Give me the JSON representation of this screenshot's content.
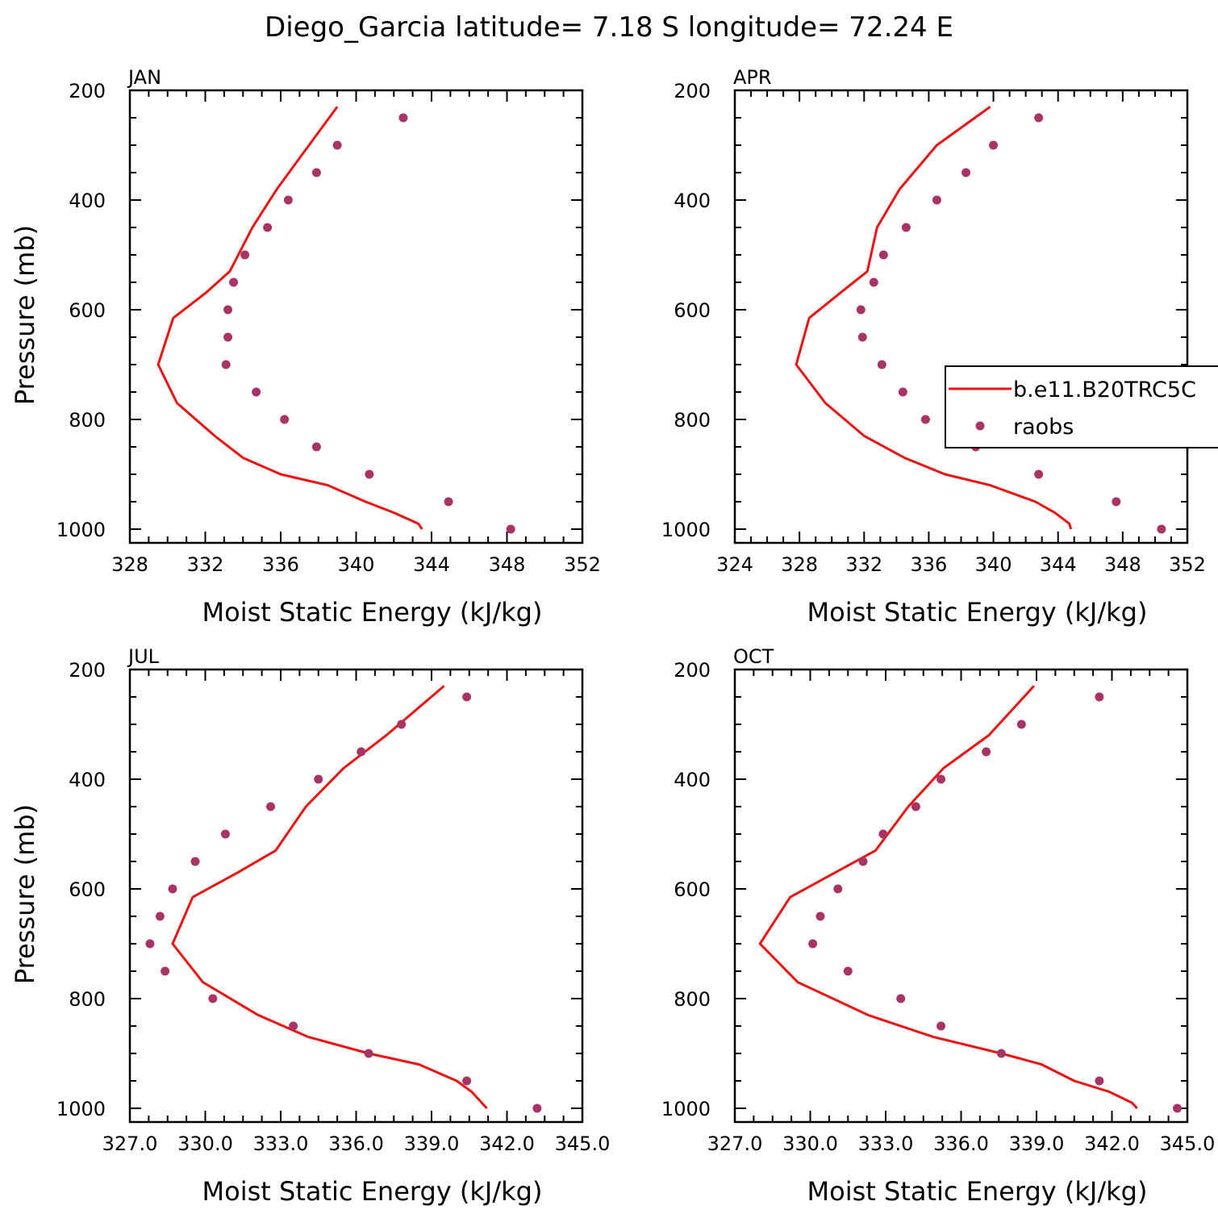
{
  "title": "Diego_Garcia  latitude= 7.18 S longitude= 72.24 E",
  "colors": {
    "model_line": "#ee1111",
    "obs_marker": "#aa3366",
    "axis": "#000000"
  },
  "legend": {
    "entries": [
      {
        "label": "b.e11.B20TRC5C",
        "style": "line"
      },
      {
        "label": "raobs",
        "style": "marker"
      }
    ],
    "panel": 1
  },
  "chart_data": [
    {
      "type": "line",
      "panel_label": "JAN",
      "xlabel": "Moist Static Energy (kJ/kg)",
      "ylabel": "Pressure (mb)",
      "xlim": [
        328,
        352
      ],
      "xticks": [
        328,
        332,
        336,
        340,
        344,
        348,
        352
      ],
      "xtick_labels": [
        "328",
        "332",
        "336",
        "340",
        "344",
        "348",
        "352"
      ],
      "ylim": [
        200,
        1025
      ],
      "yticks": [
        200,
        400,
        600,
        800,
        1000
      ],
      "ytick_labels": [
        "200",
        "400",
        "600",
        "800",
        "1000"
      ],
      "series": [
        {
          "name": "b.e11.B20TRC5C",
          "kind": "line",
          "x": [
            339.0,
            337.5,
            335.8,
            334.5,
            333.3,
            332.0,
            330.3,
            329.5,
            330.5,
            332.5,
            334.0,
            336.0,
            338.5,
            340.5,
            342.0,
            343.3,
            343.5
          ],
          "y": [
            230,
            300,
            380,
            450,
            530,
            570,
            615,
            700,
            770,
            830,
            870,
            900,
            920,
            950,
            970,
            990,
            1000
          ]
        },
        {
          "name": "raobs",
          "kind": "scatter",
          "x": [
            342.5,
            339.0,
            337.9,
            336.4,
            335.3,
            334.1,
            333.5,
            333.2,
            333.2,
            333.1,
            334.7,
            336.2,
            337.9,
            340.7,
            344.9,
            348.2
          ],
          "y": [
            250,
            300,
            350,
            400,
            450,
            500,
            550,
            600,
            650,
            700,
            750,
            800,
            850,
            900,
            950,
            1000
          ]
        }
      ]
    },
    {
      "type": "line",
      "panel_label": "APR",
      "xlabel": "Moist Static Energy (kJ/kg)",
      "ylabel": "",
      "xlim": [
        324,
        352
      ],
      "xticks": [
        324,
        328,
        332,
        336,
        340,
        344,
        348,
        352
      ],
      "xtick_labels": [
        "324",
        "328",
        "332",
        "336",
        "340",
        "344",
        "348",
        "352"
      ],
      "ylim": [
        200,
        1025
      ],
      "yticks": [
        200,
        400,
        600,
        800,
        1000
      ],
      "ytick_labels": [
        "200",
        "400",
        "600",
        "800",
        "1000"
      ],
      "series": [
        {
          "name": "b.e11.B20TRC5C",
          "kind": "line",
          "x": [
            339.8,
            336.5,
            334.2,
            332.8,
            332.2,
            330.5,
            328.6,
            327.8,
            329.6,
            332.0,
            334.5,
            337.0,
            339.8,
            342.6,
            343.8,
            344.7,
            344.8
          ],
          "y": [
            230,
            300,
            380,
            450,
            530,
            570,
            615,
            700,
            770,
            830,
            870,
            900,
            920,
            950,
            970,
            990,
            1000
          ]
        },
        {
          "name": "raobs",
          "kind": "scatter",
          "x": [
            342.8,
            340.0,
            338.3,
            336.5,
            334.6,
            333.2,
            332.6,
            331.8,
            331.9,
            333.1,
            334.4,
            335.8,
            338.9,
            342.8,
            347.6,
            350.4
          ],
          "y": [
            250,
            300,
            350,
            400,
            450,
            500,
            550,
            600,
            650,
            700,
            750,
            800,
            850,
            900,
            950,
            1000
          ]
        }
      ]
    },
    {
      "type": "line",
      "panel_label": "JUL",
      "xlabel": "Moist Static Energy (kJ/kg)",
      "ylabel": "Pressure (mb)",
      "xlim": [
        327,
        345
      ],
      "xticks": [
        327,
        330,
        333,
        336,
        339,
        342,
        345
      ],
      "xtick_labels": [
        "327.0",
        "330.0",
        "333.0",
        "336.0",
        "339.0",
        "342.0",
        "345.0"
      ],
      "ylim": [
        200,
        1025
      ],
      "yticks": [
        200,
        400,
        600,
        800,
        1000
      ],
      "ytick_labels": [
        "200",
        "400",
        "600",
        "800",
        "1000"
      ],
      "series": [
        {
          "name": "b.e11.B20TRC5C",
          "kind": "line",
          "x": [
            339.5,
            337.2,
            335.5,
            334.0,
            332.8,
            331.3,
            329.5,
            328.7,
            329.9,
            332.1,
            334.1,
            336.5,
            338.5,
            340.0,
            340.6,
            341.0,
            341.2
          ],
          "y": [
            230,
            320,
            380,
            450,
            530,
            570,
            615,
            700,
            770,
            830,
            870,
            900,
            920,
            950,
            970,
            990,
            1000
          ]
        },
        {
          "name": "raobs",
          "kind": "scatter",
          "x": [
            340.4,
            337.8,
            336.2,
            334.5,
            332.6,
            330.8,
            329.6,
            328.7,
            328.2,
            327.8,
            328.4,
            330.3,
            333.5,
            336.5,
            340.4,
            343.2
          ],
          "y": [
            250,
            300,
            350,
            400,
            450,
            500,
            550,
            600,
            650,
            700,
            750,
            800,
            850,
            900,
            950,
            1000
          ]
        }
      ]
    },
    {
      "type": "line",
      "panel_label": "OCT",
      "xlabel": "Moist Static Energy (kJ/kg)",
      "ylabel": "",
      "xlim": [
        327,
        345
      ],
      "xticks": [
        327,
        330,
        333,
        336,
        339,
        342,
        345
      ],
      "xtick_labels": [
        "327.0",
        "330.0",
        "333.0",
        "336.0",
        "339.0",
        "342.0",
        "345.0"
      ],
      "ylim": [
        200,
        1025
      ],
      "yticks": [
        200,
        400,
        600,
        800,
        1000
      ],
      "ytick_labels": [
        "200",
        "400",
        "600",
        "800",
        "1000"
      ],
      "series": [
        {
          "name": "b.e11.B20TRC5C",
          "kind": "line",
          "x": [
            338.9,
            337.1,
            335.3,
            333.9,
            332.6,
            331.0,
            329.2,
            328.0,
            329.5,
            332.3,
            334.9,
            337.6,
            339.2,
            340.5,
            341.9,
            342.8,
            343.0
          ],
          "y": [
            230,
            320,
            380,
            450,
            530,
            570,
            615,
            700,
            770,
            830,
            870,
            900,
            920,
            950,
            970,
            990,
            1000
          ]
        },
        {
          "name": "raobs",
          "kind": "scatter",
          "x": [
            341.5,
            338.4,
            337.0,
            335.2,
            334.2,
            332.9,
            332.1,
            331.1,
            330.4,
            330.1,
            331.5,
            333.6,
            335.2,
            337.6,
            341.5,
            344.6
          ],
          "y": [
            250,
            300,
            350,
            400,
            450,
            500,
            550,
            600,
            650,
            700,
            750,
            800,
            850,
            900,
            950,
            1000
          ]
        }
      ]
    }
  ]
}
